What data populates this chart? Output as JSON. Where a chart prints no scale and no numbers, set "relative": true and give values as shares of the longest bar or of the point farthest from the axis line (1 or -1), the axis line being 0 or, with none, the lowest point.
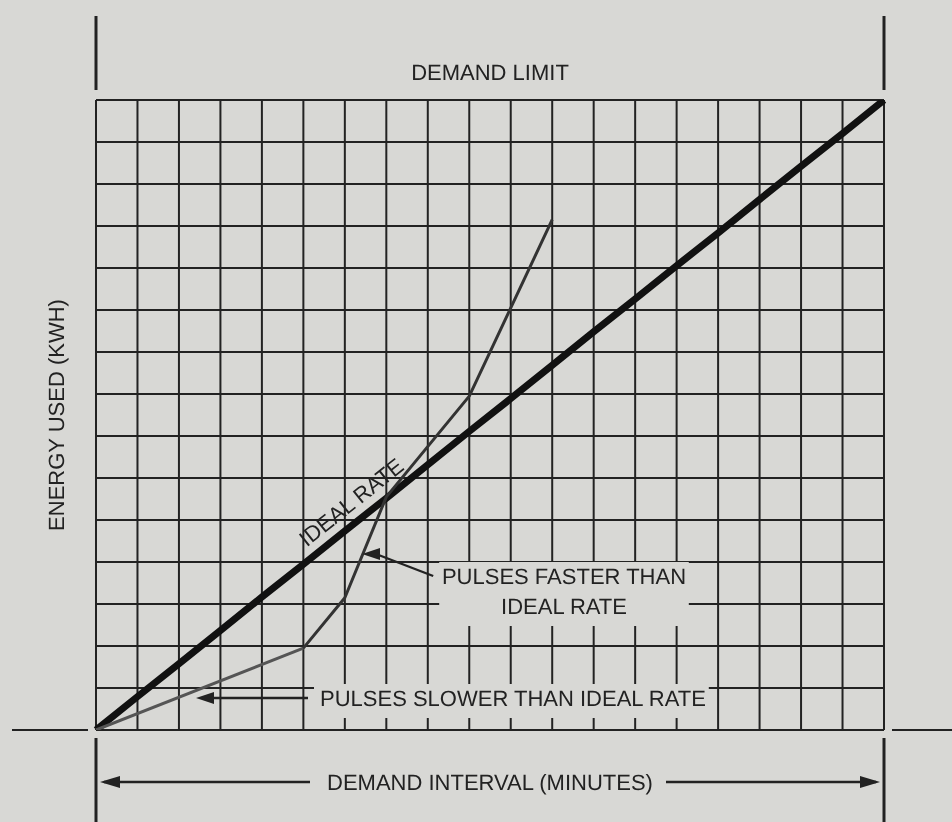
{
  "chart_data": {
    "type": "line",
    "title": "DEMAND LIMIT",
    "xlabel": "DEMAND INTERVAL (MINUTES)",
    "ylabel": "ENERGY USED (KWH)",
    "relative": true,
    "categories": [
      null,
      null,
      null,
      null,
      null,
      null,
      null,
      null,
      null,
      null,
      null,
      null,
      null,
      null,
      null,
      null,
      null,
      null,
      null,
      null
    ],
    "grid": true,
    "marker": "none",
    "series": [
      {
        "color": "#111111",
        "values": [
          0,
          0.053,
          0.105,
          0.158,
          0.211,
          0.263,
          0.316,
          0.368,
          0.421,
          0.474,
          0.526,
          0.579,
          0.632,
          0.684,
          0.737,
          0.789,
          0.842,
          0.895,
          0.947,
          1
        ]
      },
      {
        "color": "#555555",
        "values": [
          0,
          null,
          null,
          null,
          null,
          0.13,
          null,
          null,
          null,
          null,
          null,
          null,
          null,
          null,
          null,
          null,
          null,
          null,
          null,
          null
        ]
      },
      {
        "color": "#333333",
        "values": [
          null,
          null,
          null,
          null,
          null,
          0.13,
          0.21,
          0.37,
          null,
          0.53,
          null,
          0.81,
          null,
          null,
          null,
          null,
          null,
          null,
          null,
          null
        ]
      }
    ],
    "annotations": [
      "IDEAL RATE",
      "PULSES FASTER THAN IDEAL RATE",
      "PULSES SLOWER THAN IDEAL RATE"
    ]
  }
}
